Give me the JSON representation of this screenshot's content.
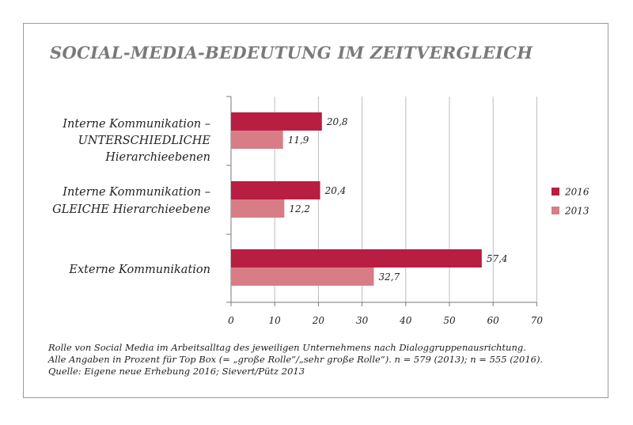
{
  "chart_data": {
    "type": "bar",
    "orientation": "horizontal",
    "title": "SOCIAL-MEDIA-BEDEUTUNG IM ZEITVERGLEICH",
    "categories": [
      [
        "Interne Kommunikation –",
        "UNTERSCHIEDLICHE",
        "Hierarchieebenen"
      ],
      [
        "Interne Kommunikation –",
        "GLEICHE Hierarchieebene"
      ],
      [
        "Externe Kommunikation"
      ]
    ],
    "series": [
      {
        "name": "2016",
        "color": "#b81d42",
        "values": [
          20.8,
          20.4,
          57.4
        ],
        "labels": [
          "20,8",
          "20,4",
          "57,4"
        ]
      },
      {
        "name": "2013",
        "color": "#d87d86",
        "values": [
          11.9,
          12.2,
          32.7
        ],
        "labels": [
          "11,9",
          "12,2",
          "32,7"
        ]
      }
    ],
    "xlim": [
      0,
      70
    ],
    "xticks": [
      0,
      10,
      20,
      30,
      40,
      50,
      60,
      70
    ],
    "grid": true,
    "legend": "right"
  },
  "footnote": {
    "line1": "Rolle von Social Media im Arbeitsalltag des jeweiligen Unternehmens nach Dialoggruppenausrichtung.",
    "line2": "Alle Angaben in Prozent für Top Box (= „große Rolle“/„sehr große Rolle“). n = 579 (2013); n = 555 (2016).",
    "line3": "Quelle: Eigene neue Erhebung 2016; Sievert/Pütz 2013"
  }
}
